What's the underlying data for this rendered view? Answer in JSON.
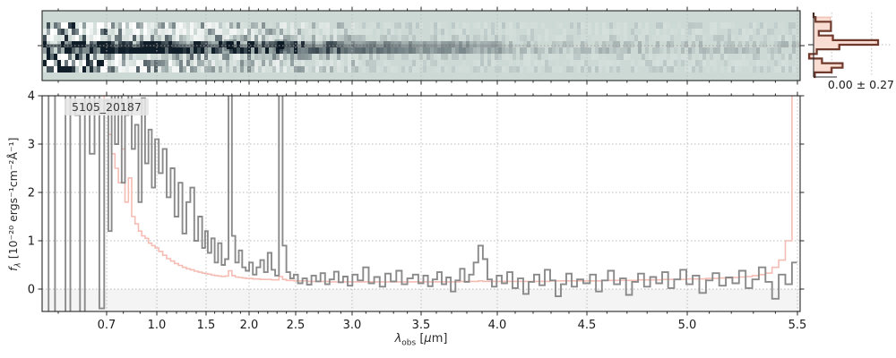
{
  "figure": {
    "source_id": "5105_20187",
    "profile_stat": "0.00 ± 0.27"
  },
  "axes": {
    "xlabel": {
      "sym": "λ",
      "sub": "obs",
      "unit_pre": " [",
      "unit_mu": "μ",
      "unit_post": "m]"
    },
    "ylabel": {
      "sym": "f",
      "sub": "λ",
      "rest": " [10⁻²⁰ ergs⁻¹cm⁻²Å⁻¹]"
    }
  },
  "chart_data": {
    "type": "line",
    "title": "5105_20187",
    "xlabel": "lambda_obs [um]",
    "ylabel": "f_lambda [10^-20 ergs^-1 cm^-2 A^-1]",
    "xlim": [
      0.575,
      5.52
    ],
    "ylim": [
      -0.46,
      4
    ],
    "grid": true,
    "x_major_ticks": [
      0.7,
      1.0,
      1.5,
      2.0,
      2.5,
      3.0,
      3.5,
      4.0,
      4.5,
      5.0,
      5.5
    ],
    "x_tick_labels": [
      "0.7",
      "1.0",
      "1.5",
      "2.0",
      "2.5",
      "3.0",
      "3.5",
      "4.0",
      "4.5",
      "5.0",
      "5.5"
    ],
    "x_minor_step": 0.1,
    "y_ticks": [
      0,
      1,
      2,
      3,
      4
    ],
    "y_tick_labels": [
      "0",
      "1",
      "2",
      "3",
      "4"
    ],
    "emission_line_wavelengths": [
      1.78,
      2.34
    ],
    "lambda": [
      0.58,
      0.59,
      0.6,
      0.61,
      0.62,
      0.63,
      0.64,
      0.65,
      0.66,
      0.67,
      0.68,
      0.69,
      0.7,
      0.72,
      0.74,
      0.76,
      0.78,
      0.8,
      0.82,
      0.84,
      0.86,
      0.88,
      0.9,
      0.92,
      0.94,
      0.96,
      0.98,
      1.0,
      1.04,
      1.08,
      1.12,
      1.16,
      1.2,
      1.24,
      1.28,
      1.32,
      1.36,
      1.4,
      1.44,
      1.48,
      1.5,
      1.54,
      1.58,
      1.62,
      1.66,
      1.7,
      1.74,
      1.78,
      1.82,
      1.86,
      1.9,
      1.94,
      1.98,
      2.02,
      2.06,
      2.1,
      2.14,
      2.18,
      2.22,
      2.26,
      2.3,
      2.34,
      2.38,
      2.42,
      2.46,
      2.5,
      2.54,
      2.58,
      2.62,
      2.66,
      2.7,
      2.74,
      2.78,
      2.82,
      2.86,
      2.9,
      2.94,
      2.98,
      3.02,
      3.06,
      3.1,
      3.14,
      3.18,
      3.22,
      3.26,
      3.3,
      3.34,
      3.38,
      3.42,
      3.46,
      3.5,
      3.53,
      3.56,
      3.59,
      3.62,
      3.65,
      3.68,
      3.71,
      3.74,
      3.77,
      3.8,
      3.83,
      3.86,
      3.89,
      3.92,
      3.95,
      3.98,
      4.01,
      4.04,
      4.07,
      4.1,
      4.13,
      4.16,
      4.19,
      4.22,
      4.25,
      4.28,
      4.31,
      4.34,
      4.37,
      4.4,
      4.43,
      4.46,
      4.5,
      4.53,
      4.56,
      4.59,
      4.62,
      4.65,
      4.68,
      4.71,
      4.74,
      4.77,
      4.8,
      4.83,
      4.86,
      4.89,
      4.92,
      4.95,
      4.98,
      5.01,
      5.04,
      5.07,
      5.1,
      5.13,
      5.16,
      5.19,
      5.22,
      5.25,
      5.28,
      5.31,
      5.34,
      5.37,
      5.4,
      5.43,
      5.46,
      5.49
    ],
    "series": [
      {
        "name": "flux",
        "color": "#8a8a8a",
        "values": [
          5,
          -1,
          5.5,
          4.2,
          -0.9,
          5,
          3.6,
          -1,
          5.2,
          2.8,
          5.5,
          -0.4,
          3.9,
          1.2,
          4.6,
          3.0,
          4.2,
          2.2,
          3.6,
          4.8,
          2.9,
          3.4,
          1.8,
          3.95,
          2.6,
          3.3,
          2.1,
          3.1,
          2.4,
          2.9,
          1.9,
          2.5,
          1.5,
          2.2,
          1.15,
          1.8,
          2.1,
          1.0,
          1.5,
          0.85,
          1.2,
          0.75,
          1.05,
          0.55,
          0.95,
          0.5,
          0.62,
          6,
          1.1,
          0.55,
          0.8,
          0.45,
          0.38,
          0.55,
          0.3,
          0.45,
          0.6,
          0.35,
          0.75,
          0.4,
          0.28,
          6,
          0.9,
          0.35,
          0.22,
          0.3,
          0.12,
          0.22,
          0.09,
          0.28,
          0.16,
          0.33,
          0.1,
          0.2,
          0.36,
          0.14,
          0.26,
          0.07,
          0.3,
          0.18,
          0.45,
          0.12,
          0.25,
          0.05,
          0.32,
          0.16,
          0.38,
          0.1,
          0.22,
          0.3,
          0.12,
          0.28,
          0.06,
          0.2,
          0.35,
          0.1,
          0.24,
          -0.05,
          0.18,
          0.42,
          0.15,
          0.3,
          0.55,
          0.9,
          0.62,
          0.2,
          0.05,
          0.28,
          0.12,
          0.35,
          0.02,
          0.22,
          -0.1,
          0.15,
          0.3,
          0.08,
          0.4,
          0.18,
          -0.15,
          0.1,
          0.32,
          0.05,
          0.2,
          0.12,
          0.3,
          -0.05,
          0.18,
          0.38,
          0.1,
          0.22,
          -0.12,
          0.15,
          0.32,
          0.05,
          0.25,
          0.12,
          0.35,
          0.02,
          0.2,
          0.4,
          0.1,
          0.28,
          -0.08,
          0.18,
          0.33,
          0.07,
          0.24,
          0.12,
          0.38,
          0.02,
          0.2,
          0.45,
          0.15,
          -0.2,
          0.3,
          0.1,
          0.55
        ]
      },
      {
        "name": "error",
        "color": "#f5bcb4",
        "values": [
          8,
          8,
          8,
          7,
          6.5,
          6,
          5.5,
          5.2,
          4.8,
          4.5,
          4.2,
          4.0,
          3.8,
          3.2,
          2.8,
          2.5,
          2.2,
          2.9,
          1.8,
          2.3,
          1.5,
          1.35,
          1.2,
          1.1,
          1.05,
          0.95,
          0.9,
          0.85,
          0.78,
          0.7,
          0.63,
          0.58,
          0.53,
          0.49,
          0.45,
          0.42,
          0.4,
          0.37,
          0.35,
          0.33,
          0.32,
          0.31,
          0.29,
          0.28,
          0.27,
          0.26,
          0.27,
          0.38,
          0.28,
          0.25,
          0.24,
          0.23,
          0.22,
          0.22,
          0.21,
          0.21,
          0.2,
          0.2,
          0.2,
          0.19,
          0.19,
          0.26,
          0.2,
          0.18,
          0.18,
          0.17,
          0.17,
          0.17,
          0.16,
          0.16,
          0.16,
          0.16,
          0.16,
          0.15,
          0.15,
          0.15,
          0.15,
          0.15,
          0.15,
          0.15,
          0.15,
          0.15,
          0.15,
          0.15,
          0.15,
          0.15,
          0.15,
          0.15,
          0.15,
          0.15,
          0.15,
          0.15,
          0.15,
          0.15,
          0.15,
          0.15,
          0.15,
          0.15,
          0.15,
          0.16,
          0.16,
          0.16,
          0.16,
          0.17,
          0.16,
          0.16,
          0.16,
          0.16,
          0.16,
          0.16,
          0.16,
          0.16,
          0.16,
          0.16,
          0.16,
          0.16,
          0.16,
          0.17,
          0.17,
          0.17,
          0.17,
          0.17,
          0.17,
          0.17,
          0.17,
          0.17,
          0.18,
          0.18,
          0.18,
          0.18,
          0.18,
          0.18,
          0.19,
          0.19,
          0.19,
          0.19,
          0.2,
          0.2,
          0.2,
          0.2,
          0.21,
          0.21,
          0.21,
          0.22,
          0.22,
          0.23,
          0.23,
          0.24,
          0.25,
          0.26,
          0.28,
          0.3,
          0.33,
          0.45,
          0.6,
          1.0,
          8
        ]
      }
    ],
    "profile": {
      "stat": "0.00 ± 0.27",
      "bins_fit": [
        0,
        0.03,
        0.27,
        0.27,
        0.08,
        0.3,
        1.0,
        0.4,
        0.05,
        -0.07,
        0.13,
        0.45,
        0.28,
        0.02
      ],
      "bins_pink": [
        0,
        0.26,
        0.27,
        0.26,
        0.08,
        0.28,
        0.97,
        0.38,
        0.04,
        -0.05,
        0.12,
        0.42,
        0.26,
        0.02
      ],
      "grid_fractions": [
        0.28,
        0.9
      ],
      "colors": {
        "fill": "#f9ddd3",
        "fill_edge": "#f0b2a4",
        "fit_line": "#6f3a2b"
      }
    },
    "colors": {
      "background_2d": "#cdd9d5",
      "grid": "#b9b9b9",
      "below_zero_band": "#f4f4f4",
      "spine": "#262626",
      "noise_dark": "#101e2a"
    }
  }
}
